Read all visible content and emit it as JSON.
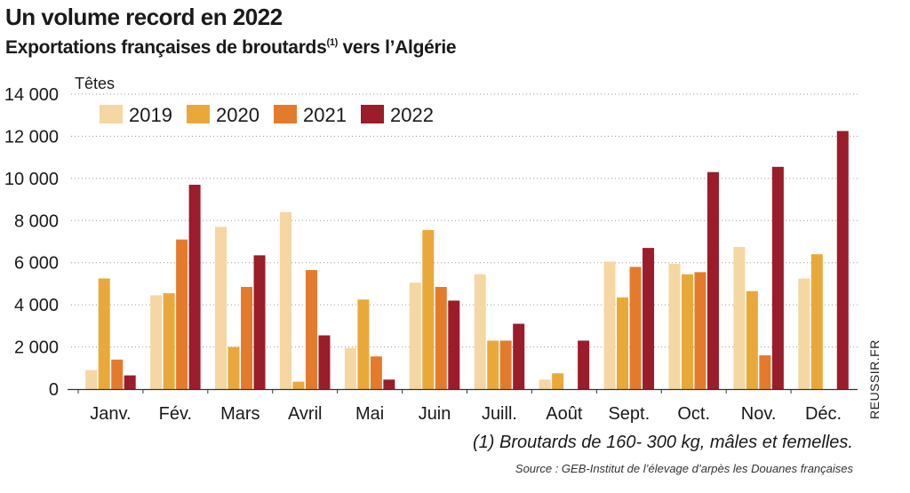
{
  "title": "Un volume record en 2022",
  "subtitle": "Exportations françaises de broutards",
  "subtitle_note": "(1)",
  "footnote": "(1) Broutards de 160- 300 kg, mâles et femelles.",
  "source": "Source : GEB-Institut de l’élevage d’arpès les Douanes françaises",
  "brand": "REUSSIR.FR",
  "chart_data": {
    "type": "bar",
    "ylabel": "Têtes",
    "ylim": [
      0,
      14000
    ],
    "yticks": [
      0,
      2000,
      4000,
      6000,
      8000,
      10000,
      12000,
      14000
    ],
    "ytick_labels": [
      "0",
      "2 000",
      "4 000",
      "6 000",
      "8 000",
      "10 000",
      "12 000",
      "14 000"
    ],
    "grid": "horizontal dotted",
    "legend": "top-left",
    "categories": [
      "Janv.",
      "Fév.",
      "Mars",
      "Avril",
      "Mai",
      "Juin",
      "Juill.",
      "Août",
      "Sept.",
      "Oct.",
      "Nov.",
      "Déc."
    ],
    "series": [
      {
        "name": "2019",
        "color": "#f5d7a3",
        "values": [
          900,
          4450,
          7700,
          8400,
          1950,
          5050,
          5450,
          450,
          6050,
          5950,
          6750,
          5250
        ]
      },
      {
        "name": "2020",
        "color": "#e9a93a",
        "values": [
          5250,
          4550,
          2000,
          350,
          4250,
          7550,
          2300,
          750,
          4350,
          5450,
          4650,
          6400
        ]
      },
      {
        "name": "2021",
        "color": "#e47b2c",
        "values": [
          1400,
          7100,
          4850,
          5650,
          1550,
          4850,
          2300,
          0,
          5800,
          5550,
          1600,
          0
        ]
      },
      {
        "name": "2022",
        "color": "#9b1c2a",
        "values": [
          650,
          9700,
          6350,
          2550,
          450,
          4200,
          3100,
          2300,
          6700,
          10300,
          10550,
          12250
        ]
      }
    ]
  }
}
